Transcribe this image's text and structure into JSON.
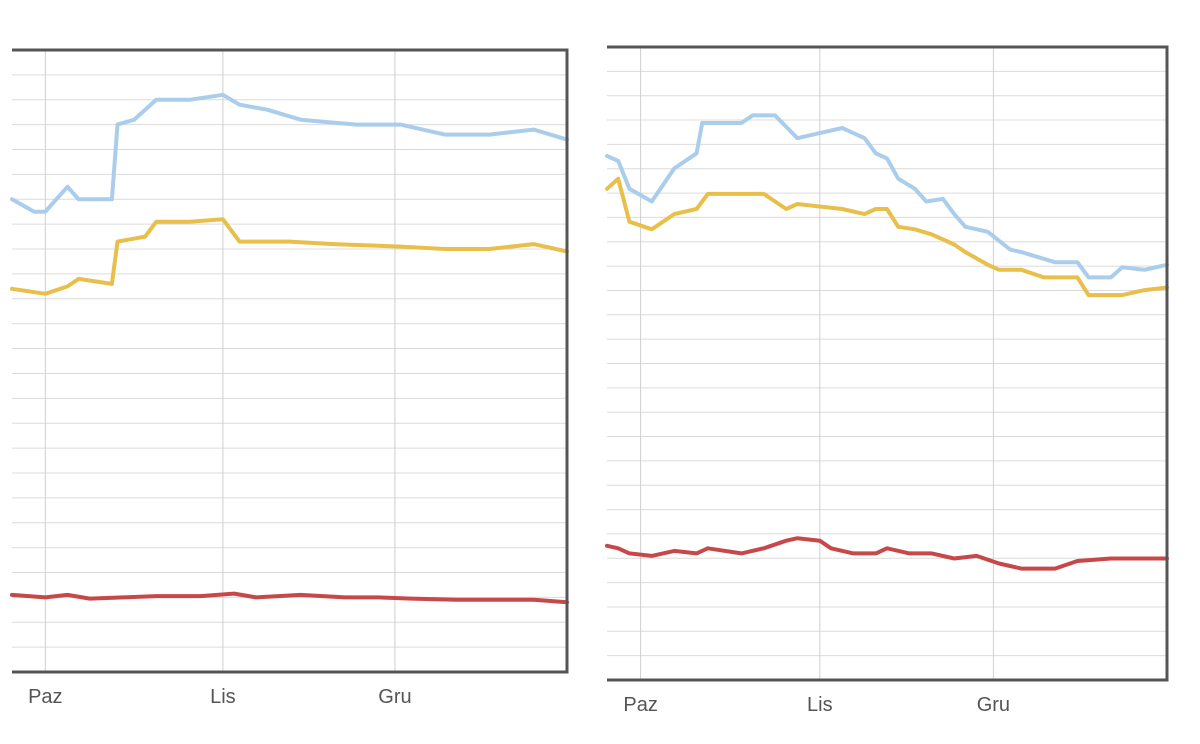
{
  "chart_data": [
    {
      "type": "line",
      "title": "",
      "xlabel": "",
      "ylabel": "",
      "categories": [
        "Paz",
        "Lis",
        "Gru"
      ],
      "x_range": [
        0,
        100
      ],
      "category_positions": [
        6,
        38,
        69
      ],
      "ylim": [
        0,
        25
      ],
      "grid": true,
      "series": [
        {
          "color": "#a9cdea",
          "points": [
            [
              0,
              19
            ],
            [
              4,
              18.5
            ],
            [
              6,
              18.5
            ],
            [
              10,
              19.5
            ],
            [
              12,
              19
            ],
            [
              18,
              19
            ],
            [
              19,
              22
            ],
            [
              22,
              22.2
            ],
            [
              26,
              23
            ],
            [
              32,
              23
            ],
            [
              38,
              23.2
            ],
            [
              41,
              22.8
            ],
            [
              46,
              22.6
            ],
            [
              52,
              22.2
            ],
            [
              62,
              22.0
            ],
            [
              70,
              22.0
            ],
            [
              78,
              21.6
            ],
            [
              86,
              21.6
            ],
            [
              94,
              21.8
            ],
            [
              100,
              21.4
            ]
          ]
        },
        {
          "color": "#e8bf4b",
          "points": [
            [
              0,
              15.4
            ],
            [
              6,
              15.2
            ],
            [
              10,
              15.5
            ],
            [
              12,
              15.8
            ],
            [
              18,
              15.6
            ],
            [
              19,
              17.3
            ],
            [
              24,
              17.5
            ],
            [
              26,
              18.1
            ],
            [
              32,
              18.1
            ],
            [
              38,
              18.2
            ],
            [
              41,
              17.3
            ],
            [
              50,
              17.3
            ],
            [
              58,
              17.2
            ],
            [
              70,
              17.1
            ],
            [
              78,
              17.0
            ],
            [
              86,
              17.0
            ],
            [
              94,
              17.2
            ],
            [
              100,
              16.9
            ]
          ]
        },
        {
          "color": "#c74849",
          "points": [
            [
              0,
              3.1
            ],
            [
              6,
              3.0
            ],
            [
              10,
              3.1
            ],
            [
              14,
              2.95
            ],
            [
              20,
              3.0
            ],
            [
              26,
              3.05
            ],
            [
              34,
              3.05
            ],
            [
              40,
              3.15
            ],
            [
              44,
              3.0
            ],
            [
              52,
              3.1
            ],
            [
              60,
              3.0
            ],
            [
              66,
              3.0
            ],
            [
              72,
              2.95
            ],
            [
              80,
              2.9
            ],
            [
              88,
              2.9
            ],
            [
              94,
              2.9
            ],
            [
              100,
              2.8
            ]
          ]
        }
      ]
    },
    {
      "type": "line",
      "title": "",
      "xlabel": "",
      "ylabel": "",
      "categories": [
        "Paz",
        "Lis",
        "Gru"
      ],
      "x_range": [
        0,
        100
      ],
      "category_positions": [
        6,
        38,
        69
      ],
      "ylim": [
        0,
        25
      ],
      "grid": true,
      "series": [
        {
          "color": "#a9cdea",
          "points": [
            [
              0,
              20.7
            ],
            [
              2,
              20.5
            ],
            [
              4,
              19.4
            ],
            [
              8,
              18.9
            ],
            [
              12,
              20.2
            ],
            [
              16,
              20.8
            ],
            [
              17,
              22.0
            ],
            [
              24,
              22.0
            ],
            [
              26,
              22.3
            ],
            [
              30,
              22.3
            ],
            [
              34,
              21.4
            ],
            [
              38,
              21.6
            ],
            [
              42,
              21.8
            ],
            [
              46,
              21.4
            ],
            [
              48,
              20.8
            ],
            [
              50,
              20.6
            ],
            [
              52,
              19.8
            ],
            [
              55,
              19.4
            ],
            [
              57,
              18.9
            ],
            [
              60,
              19.0
            ],
            [
              62,
              18.4
            ],
            [
              64,
              17.9
            ],
            [
              68,
              17.7
            ],
            [
              72,
              17.0
            ],
            [
              74,
              16.9
            ],
            [
              80,
              16.5
            ],
            [
              84,
              16.5
            ],
            [
              86,
              15.9
            ],
            [
              90,
              15.9
            ],
            [
              92,
              16.3
            ],
            [
              96,
              16.2
            ],
            [
              100,
              16.4
            ]
          ]
        },
        {
          "color": "#e8bf4b",
          "points": [
            [
              0,
              19.4
            ],
            [
              2,
              19.8
            ],
            [
              4,
              18.1
            ],
            [
              8,
              17.8
            ],
            [
              12,
              18.4
            ],
            [
              16,
              18.6
            ],
            [
              18,
              19.2
            ],
            [
              24,
              19.2
            ],
            [
              28,
              19.2
            ],
            [
              32,
              18.6
            ],
            [
              34,
              18.8
            ],
            [
              38,
              18.7
            ],
            [
              42,
              18.6
            ],
            [
              46,
              18.4
            ],
            [
              48,
              18.6
            ],
            [
              50,
              18.6
            ],
            [
              52,
              17.9
            ],
            [
              55,
              17.8
            ],
            [
              58,
              17.6
            ],
            [
              62,
              17.2
            ],
            [
              64,
              16.9
            ],
            [
              68,
              16.4
            ],
            [
              70,
              16.2
            ],
            [
              74,
              16.2
            ],
            [
              78,
              15.9
            ],
            [
              84,
              15.9
            ],
            [
              86,
              15.2
            ],
            [
              92,
              15.2
            ],
            [
              96,
              15.4
            ],
            [
              100,
              15.5
            ]
          ]
        },
        {
          "color": "#c74849",
          "points": [
            [
              0,
              5.3
            ],
            [
              2,
              5.2
            ],
            [
              4,
              5.0
            ],
            [
              8,
              4.9
            ],
            [
              12,
              5.1
            ],
            [
              16,
              5.0
            ],
            [
              18,
              5.2
            ],
            [
              24,
              5.0
            ],
            [
              28,
              5.2
            ],
            [
              32,
              5.5
            ],
            [
              34,
              5.6
            ],
            [
              38,
              5.5
            ],
            [
              40,
              5.2
            ],
            [
              44,
              5.0
            ],
            [
              48,
              5.0
            ],
            [
              50,
              5.2
            ],
            [
              54,
              5.0
            ],
            [
              58,
              5.0
            ],
            [
              62,
              4.8
            ],
            [
              66,
              4.9
            ],
            [
              70,
              4.6
            ],
            [
              74,
              4.4
            ],
            [
              80,
              4.4
            ],
            [
              84,
              4.7
            ],
            [
              90,
              4.8
            ],
            [
              96,
              4.8
            ],
            [
              100,
              4.8
            ]
          ]
        }
      ]
    }
  ]
}
